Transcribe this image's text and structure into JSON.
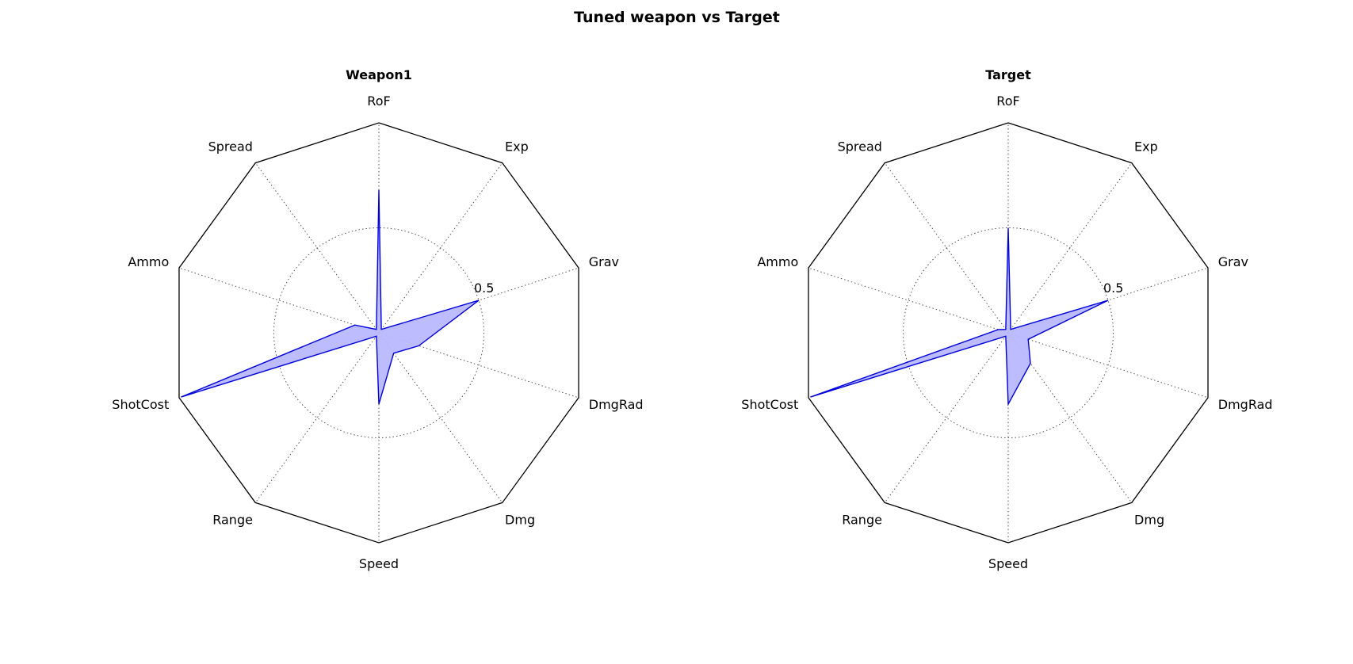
{
  "figure": {
    "title": "Tuned weapon vs Target"
  },
  "chart_data": [
    {
      "type": "radar",
      "title": "Weapon1",
      "axes": [
        "RoF",
        "Exp",
        "Grav",
        "DmgRad",
        "Dmg",
        "Speed",
        "Range",
        "ShotCost",
        "Ammo",
        "Spread"
      ],
      "r_tick_label": "0.5",
      "r_tick_value": 0.5,
      "rlim": [
        0,
        1
      ],
      "series": [
        {
          "values": [
            0.68,
            0.02,
            0.5,
            0.2,
            0.12,
            0.34,
            0.02,
            0.99,
            0.12,
            0.02
          ]
        }
      ],
      "fill_color": "#b8b8ff",
      "line_color": "#0000dd",
      "frame_shape": "decagon"
    },
    {
      "type": "radar",
      "title": "Target",
      "axes": [
        "RoF",
        "Exp",
        "Grav",
        "DmgRad",
        "Dmg",
        "Speed",
        "Range",
        "ShotCost",
        "Ammo",
        "Spread"
      ],
      "r_tick_label": "0.5",
      "r_tick_value": 0.5,
      "rlim": [
        0,
        1
      ],
      "series": [
        {
          "values": [
            0.5,
            0.02,
            0.5,
            0.1,
            0.18,
            0.34,
            0.02,
            0.99,
            0.05,
            0.02
          ]
        }
      ],
      "fill_color": "#b8b8ff",
      "line_color": "#0000dd",
      "frame_shape": "decagon"
    }
  ]
}
